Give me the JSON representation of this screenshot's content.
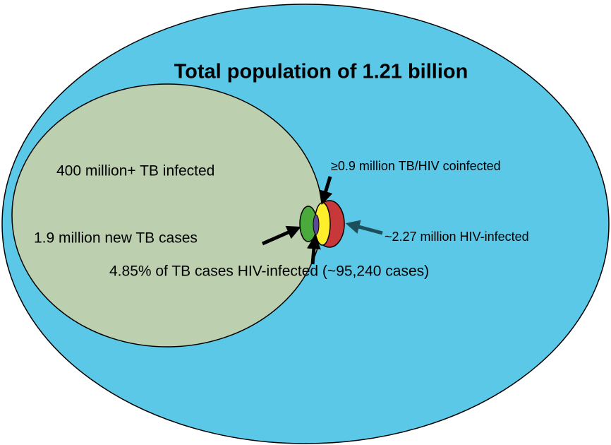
{
  "title": "Total population of 1.21 billion",
  "labels": {
    "tb_infected": "400 million+ TB infected",
    "coinfected": "≥0.9 million TB/HIV coinfected",
    "new_tb": "1.9 million new TB cases",
    "hiv": "~2.27 million HIV-infected",
    "tb_hiv": "4.85% of TB cases HIV-infected (~95,240 cases)"
  }
}
